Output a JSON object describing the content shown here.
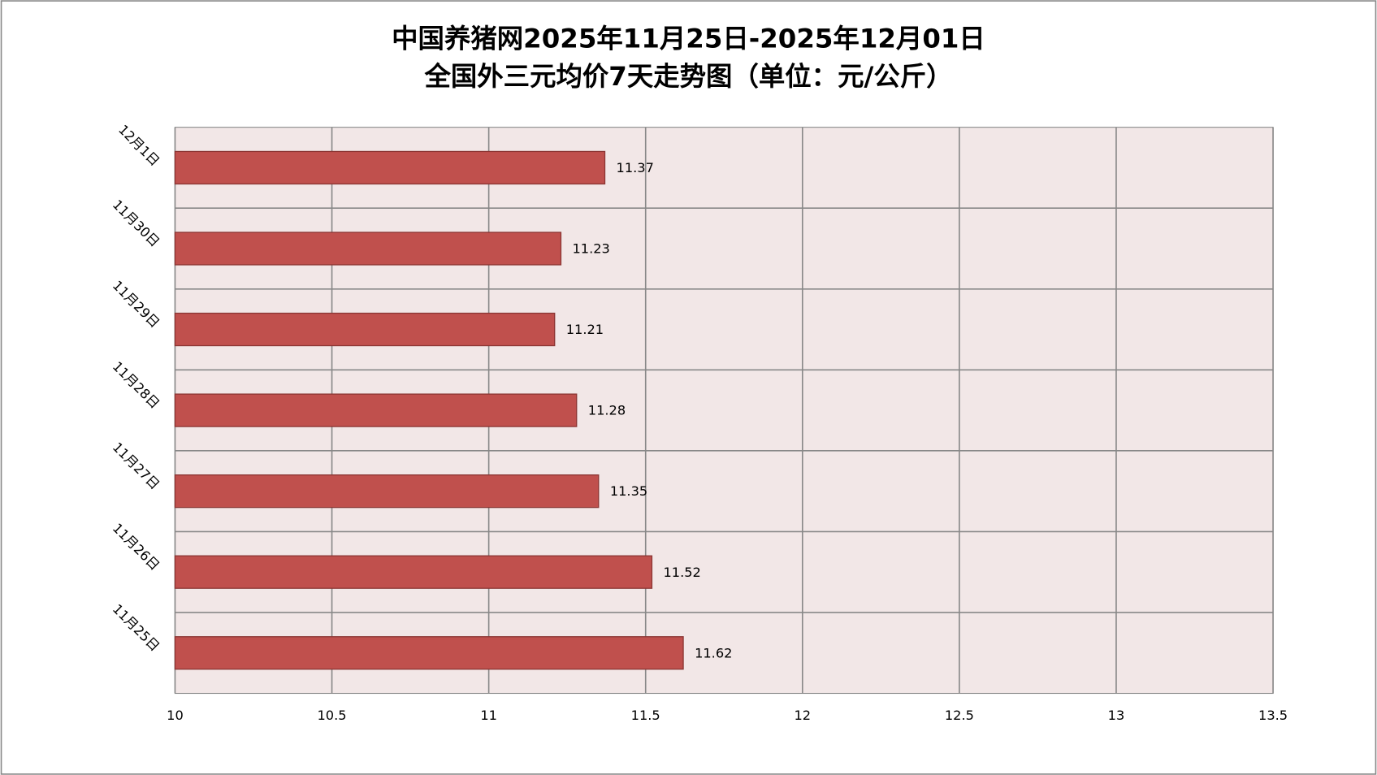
{
  "chart_data": {
    "type": "bar",
    "orientation": "horizontal",
    "title": [
      "中国养猪网2025年11月25日-2025年12月01日",
      "全国外三元均价7天走势图（单位：元/公斤）"
    ],
    "categories": [
      "12月1日",
      "11月30日",
      "11月29日",
      "11月28日",
      "11月27日",
      "11月26日",
      "11月25日"
    ],
    "values": [
      11.37,
      11.23,
      11.21,
      11.28,
      11.35,
      11.52,
      11.62
    ],
    "color": "#c0504d",
    "xlim": [
      10,
      13.5
    ],
    "xticks": [
      10,
      10.5,
      11,
      11.5,
      12,
      12.5,
      13,
      13.5
    ],
    "grid": true
  }
}
